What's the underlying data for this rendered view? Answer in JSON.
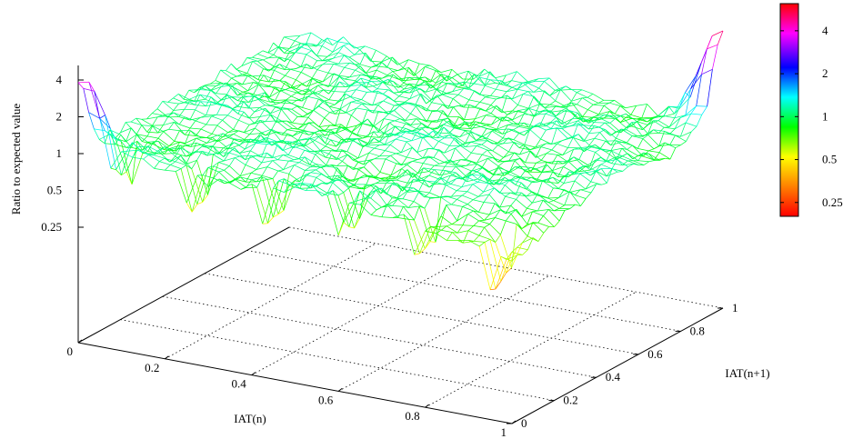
{
  "chart_data": {
    "type": "surface-3d-wireframe",
    "xlabel": "IAT(n)",
    "ylabel": "IAT(n+1)",
    "zlabel": "Ratio to expected value",
    "x_range": [
      0,
      1
    ],
    "y_range": [
      0,
      1
    ],
    "x_ticks": [
      "0",
      "0.2",
      "0.4",
      "0.6",
      "0.8",
      "1"
    ],
    "y_ticks": [
      "0",
      "0.2",
      "0.4",
      "0.6",
      "0.8",
      "1"
    ],
    "z_scale": "log",
    "z_ticks": [
      "0.25",
      "0.5",
      "1",
      "2",
      "4"
    ],
    "z_range": [
      0.25,
      4.5
    ],
    "grid": true,
    "mesh_resolution": 40,
    "corner_values": {
      "x0_y0": 4.3,
      "x1_y1": 4.7,
      "x0_y1": 1.3,
      "x1_y0": 0.35
    },
    "typical_value": 1.0,
    "colorbar": {
      "scale": "log",
      "ticks": [
        "0.25",
        "0.5",
        "1",
        "2",
        "4"
      ],
      "colors": [
        "#ff0000",
        "#ff8000",
        "#ffff00",
        "#00ff00",
        "#00ffff",
        "#0000ff",
        "#ff00ff",
        "#ff0000"
      ]
    }
  }
}
